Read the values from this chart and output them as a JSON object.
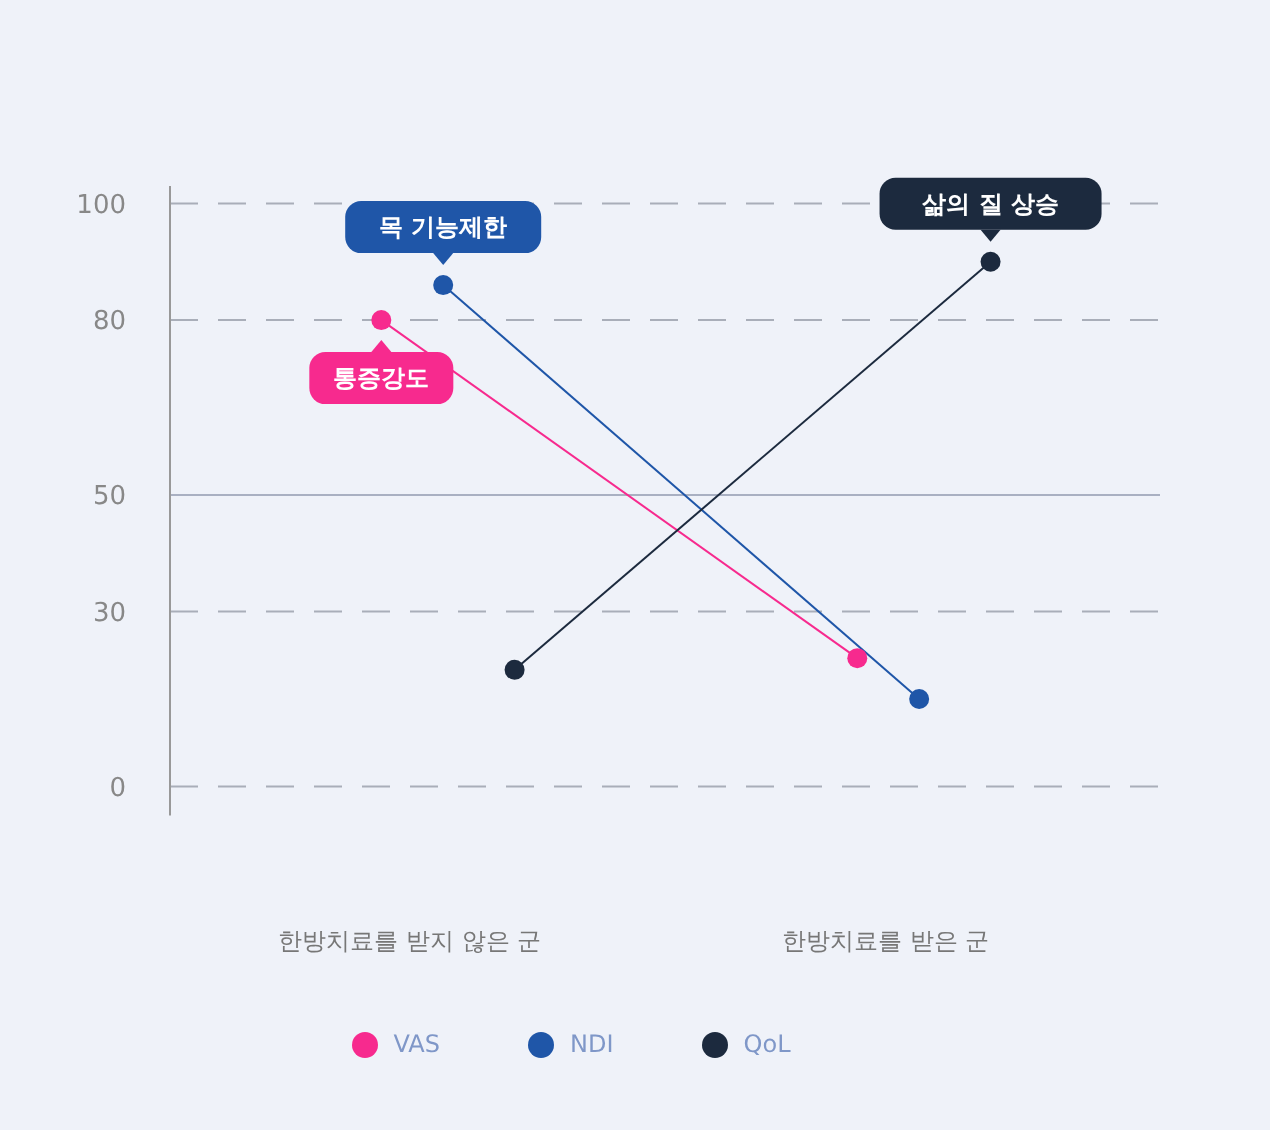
{
  "chart_data": {
    "type": "line",
    "categories": [
      "한방치료를 받지 않은 군",
      "한방치료를 받은 군"
    ],
    "ylim": [
      -5,
      103
    ],
    "yticks": [
      0,
      30,
      50,
      80,
      100
    ],
    "grid": "y",
    "legend": "bottom",
    "marker": "circle",
    "line_style": "solid",
    "ref_lines": [
      {
        "axis": "y",
        "value": 50,
        "color": "#a9b0c2",
        "line_style": "solid"
      }
    ],
    "series": [
      {
        "name": "VAS",
        "color": "#f72a8e",
        "values": [
          80,
          22
        ]
      },
      {
        "name": "NDI",
        "color": "#1f56a8",
        "values": [
          86,
          15
        ]
      },
      {
        "name": "QoL",
        "color": "#1c2a3e",
        "values": [
          20,
          90
        ]
      }
    ],
    "annotations": [
      "통증강도",
      "목 기능제한",
      "삶의 질 상승"
    ]
  }
}
